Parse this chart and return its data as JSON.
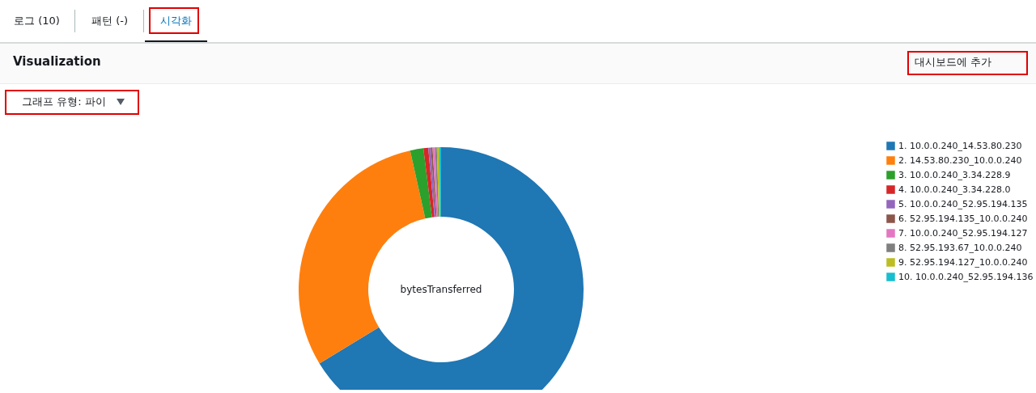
{
  "chart_data": {
    "type": "donut",
    "title": "Visualization",
    "annotations": [
      "로그 (10)",
      "패턴 (-)",
      "시각화",
      "대시보드에 추가",
      "그래프 유형: 파이",
      "bytesTransferred"
    ],
    "categories": [
      "1. 10.0.0.240_14.53.80.230",
      "2. 14.53.80.230_10.0.0.240",
      "3. 10.0.0.240_3.34.228.9",
      "4. 10.0.0.240_3.34.228.0",
      "5. 10.0.0.240_52.95.194.135",
      "6. 52.95.194.135_10.0.0.240",
      "7. 10.0.0.240_52.95.194.127",
      "8. 52.95.193.67_10.0.0.240",
      "9. 52.95.194.127_10.0.0.240",
      "10. 10.0.0.240_52.95.194.136"
    ],
    "values": [
      66.3,
      30.21,
      1.5,
      0.55,
      0.28,
      0.2,
      0.28,
      0.2,
      0.28,
      0.2
    ],
    "colors": [
      "#1f77b4",
      "#ff7f0e",
      "#2ca02c",
      "#d62728",
      "#9467bd",
      "#8c564b",
      "#e377c2",
      "#7f7f7f",
      "#bcbd22",
      "#17becf"
    ],
    "legend": "top right"
  }
}
